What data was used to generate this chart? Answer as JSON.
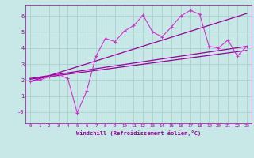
{
  "title": "",
  "xlabel": "Windchill (Refroidissement éolien,°C)",
  "ylabel": "",
  "xlim": [
    -0.5,
    23.5
  ],
  "ylim": [
    -0.7,
    6.7
  ],
  "yticks": [
    0,
    1,
    2,
    3,
    4,
    5,
    6
  ],
  "ytick_labels": [
    "-0",
    "1",
    "2",
    "3",
    "4",
    "5",
    "6"
  ],
  "xticks": [
    0,
    1,
    2,
    3,
    4,
    5,
    6,
    7,
    8,
    9,
    10,
    11,
    12,
    13,
    14,
    15,
    16,
    17,
    18,
    19,
    20,
    21,
    22,
    23
  ],
  "background_color": "#c8e8e8",
  "grid_color": "#aacfcf",
  "line_color": "#990099",
  "line_color2": "#cc33cc",
  "scatter_data": [
    [
      0,
      1.9
    ],
    [
      1,
      2.0
    ],
    [
      2,
      2.2
    ],
    [
      3,
      2.35
    ],
    [
      4,
      2.1
    ],
    [
      5,
      -0.05
    ],
    [
      6,
      1.3
    ],
    [
      7,
      3.5
    ],
    [
      8,
      4.6
    ],
    [
      9,
      4.4
    ],
    [
      10,
      5.05
    ],
    [
      11,
      5.4
    ],
    [
      12,
      6.05
    ],
    [
      13,
      5.0
    ],
    [
      14,
      4.7
    ],
    [
      15,
      5.3
    ],
    [
      16,
      6.0
    ],
    [
      17,
      6.35
    ],
    [
      18,
      6.1
    ],
    [
      19,
      4.1
    ],
    [
      20,
      4.0
    ],
    [
      21,
      4.5
    ],
    [
      22,
      3.5
    ],
    [
      23,
      4.1
    ]
  ],
  "reg_line1": [
    [
      0,
      1.9
    ],
    [
      23,
      6.15
    ]
  ],
  "reg_line2": [
    [
      0,
      2.05
    ],
    [
      23,
      3.85
    ]
  ],
  "reg_line3": [
    [
      0,
      2.1
    ],
    [
      23,
      4.1
    ]
  ]
}
